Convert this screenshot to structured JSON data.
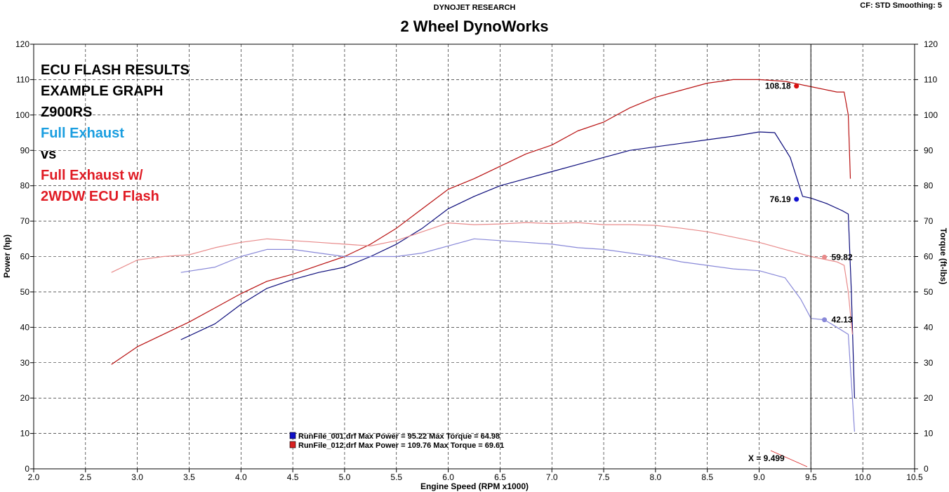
{
  "header": {
    "source": "DYNOJET RESEARCH",
    "title": "2 Wheel DynoWorks",
    "correction": "CF: STD  Smoothing: 5"
  },
  "overlay_text": [
    {
      "text": "ECU FLASH RESULTS",
      "color": "#000000"
    },
    {
      "text": "EXAMPLE GRAPH",
      "color": "#000000"
    },
    {
      "text": "Z900RS",
      "color": "#000000"
    },
    {
      "text": "Full Exhaust",
      "color": "#1a9ee0"
    },
    {
      "text": "vs",
      "color": "#000000"
    },
    {
      "text": "Full Exhaust w/",
      "color": "#e01b24"
    },
    {
      "text": "2WDW ECU Flash",
      "color": "#e01b24"
    }
  ],
  "legend": [
    {
      "text": "RunFile_001.drf Max Power = 95.22     Max Torque = 64.98",
      "color": "#1010c8"
    },
    {
      "text": "RunFile_012.drf Max Power = 109.76     Max Torque = 69.61",
      "color": "#d82020"
    }
  ],
  "cursor_readout": "X = 9.499",
  "chart_data": {
    "type": "line",
    "title": "2 Wheel DynoWorks",
    "xlabel": "Engine Speed (RPM x1000)",
    "ylabel": "Power (hp)",
    "y2label": "Torque (ft-lbs)",
    "xlim": [
      2.0,
      10.5
    ],
    "ylim": [
      0,
      120
    ],
    "y2lim": [
      0,
      120
    ],
    "x_ticks": [
      "2.0",
      "2.5",
      "3.0",
      "3.5",
      "4.0",
      "4.5",
      "5.0",
      "5.5",
      "6.0",
      "6.5",
      "7.0",
      "7.5",
      "8.0",
      "8.5",
      "9.0",
      "9.5",
      "10.0",
      "10.5"
    ],
    "y_ticks": [
      "0",
      "10",
      "20",
      "30",
      "40",
      "50",
      "60",
      "70",
      "80",
      "90",
      "100",
      "110",
      "120"
    ],
    "grid": true,
    "cursor_x": 9.499,
    "series": [
      {
        "name": "RunFile_012.drf",
        "quantity": "power",
        "color": "#b81010",
        "points": [
          [
            2.75,
            29.5
          ],
          [
            3.0,
            34.5
          ],
          [
            3.25,
            38
          ],
          [
            3.5,
            41.5
          ],
          [
            3.75,
            45.5
          ],
          [
            4.0,
            49.5
          ],
          [
            4.25,
            53
          ],
          [
            4.5,
            55
          ],
          [
            4.75,
            57.5
          ],
          [
            5.0,
            60
          ],
          [
            5.25,
            63.5
          ],
          [
            5.5,
            68
          ],
          [
            5.75,
            73.5
          ],
          [
            6.0,
            79
          ],
          [
            6.25,
            82
          ],
          [
            6.5,
            85.5
          ],
          [
            6.75,
            89
          ],
          [
            7.0,
            91.5
          ],
          [
            7.25,
            95.5
          ],
          [
            7.5,
            98
          ],
          [
            7.75,
            102
          ],
          [
            8.0,
            105
          ],
          [
            8.25,
            107
          ],
          [
            8.5,
            109
          ],
          [
            8.75,
            110
          ],
          [
            9.0,
            110
          ],
          [
            9.25,
            109.5
          ],
          [
            9.5,
            108
          ],
          [
            9.75,
            106.5
          ],
          [
            9.82,
            106.5
          ],
          [
            9.86,
            100
          ],
          [
            9.88,
            82
          ]
        ],
        "marker": {
          "x": 9.36,
          "y": 108.18,
          "label": "108.18"
        }
      },
      {
        "name": "RunFile_001.drf",
        "quantity": "power",
        "color": "#0a0a7a",
        "points": [
          [
            3.42,
            36.5
          ],
          [
            3.75,
            41
          ],
          [
            4.0,
            46.5
          ],
          [
            4.25,
            51
          ],
          [
            4.5,
            53.5
          ],
          [
            4.75,
            55.5
          ],
          [
            5.0,
            57
          ],
          [
            5.25,
            60
          ],
          [
            5.5,
            63.5
          ],
          [
            5.75,
            68
          ],
          [
            6.0,
            73.5
          ],
          [
            6.25,
            77
          ],
          [
            6.5,
            80
          ],
          [
            6.75,
            82
          ],
          [
            7.0,
            84
          ],
          [
            7.25,
            86
          ],
          [
            7.5,
            88
          ],
          [
            7.75,
            90
          ],
          [
            8.0,
            91
          ],
          [
            8.25,
            92
          ],
          [
            8.5,
            93
          ],
          [
            8.75,
            94
          ],
          [
            9.0,
            95.2
          ],
          [
            9.15,
            95
          ],
          [
            9.3,
            88
          ],
          [
            9.42,
            77
          ],
          [
            9.5,
            76.5
          ],
          [
            9.65,
            75
          ],
          [
            9.8,
            73
          ],
          [
            9.86,
            72
          ],
          [
            9.89,
            50
          ],
          [
            9.92,
            20
          ]
        ],
        "marker": {
          "x": 9.36,
          "y": 76.19,
          "label": "76.19"
        }
      },
      {
        "name": "RunFile_012.drf",
        "quantity": "torque",
        "color": "#e88a8a",
        "points": [
          [
            2.75,
            55.5
          ],
          [
            3.0,
            59
          ],
          [
            3.25,
            60
          ],
          [
            3.5,
            60.5
          ],
          [
            3.75,
            62.5
          ],
          [
            4.0,
            64
          ],
          [
            4.25,
            65
          ],
          [
            4.5,
            64.5
          ],
          [
            4.75,
            64
          ],
          [
            5.0,
            63.5
          ],
          [
            5.25,
            63
          ],
          [
            5.5,
            64.5
          ],
          [
            5.75,
            67
          ],
          [
            6.0,
            69.5
          ],
          [
            6.25,
            69
          ],
          [
            6.5,
            69.2
          ],
          [
            6.75,
            69.6
          ],
          [
            7.0,
            69.3
          ],
          [
            7.25,
            69.6
          ],
          [
            7.5,
            69
          ],
          [
            7.75,
            69
          ],
          [
            8.0,
            68.8
          ],
          [
            8.25,
            68
          ],
          [
            8.5,
            67
          ],
          [
            8.75,
            65.5
          ],
          [
            9.0,
            64
          ],
          [
            9.25,
            62
          ],
          [
            9.5,
            60
          ],
          [
            9.75,
            58.5
          ],
          [
            9.82,
            57.5
          ],
          [
            9.86,
            50
          ],
          [
            9.9,
            38
          ]
        ],
        "marker": {
          "x": 9.63,
          "y": 59.82,
          "label": "59.82"
        }
      },
      {
        "name": "RunFile_001.drf",
        "quantity": "torque",
        "color": "#8888d8",
        "points": [
          [
            3.42,
            55.5
          ],
          [
            3.75,
            57
          ],
          [
            4.0,
            60
          ],
          [
            4.25,
            62
          ],
          [
            4.5,
            62
          ],
          [
            4.75,
            61
          ],
          [
            5.0,
            60
          ],
          [
            5.25,
            60
          ],
          [
            5.5,
            60
          ],
          [
            5.75,
            61
          ],
          [
            6.0,
            63
          ],
          [
            6.25,
            65
          ],
          [
            6.5,
            64.5
          ],
          [
            6.75,
            64
          ],
          [
            7.0,
            63.5
          ],
          [
            7.25,
            62.5
          ],
          [
            7.5,
            62
          ],
          [
            7.75,
            61
          ],
          [
            8.0,
            60
          ],
          [
            8.25,
            58.5
          ],
          [
            8.5,
            57.5
          ],
          [
            8.75,
            56.5
          ],
          [
            9.0,
            56
          ],
          [
            9.25,
            54
          ],
          [
            9.4,
            48
          ],
          [
            9.5,
            42.5
          ],
          [
            9.63,
            42.13
          ],
          [
            9.75,
            40
          ],
          [
            9.86,
            38
          ],
          [
            9.9,
            20
          ],
          [
            9.92,
            10.5
          ]
        ],
        "marker": {
          "x": 9.63,
          "y": 42.13,
          "label": "42.13"
        }
      }
    ]
  }
}
